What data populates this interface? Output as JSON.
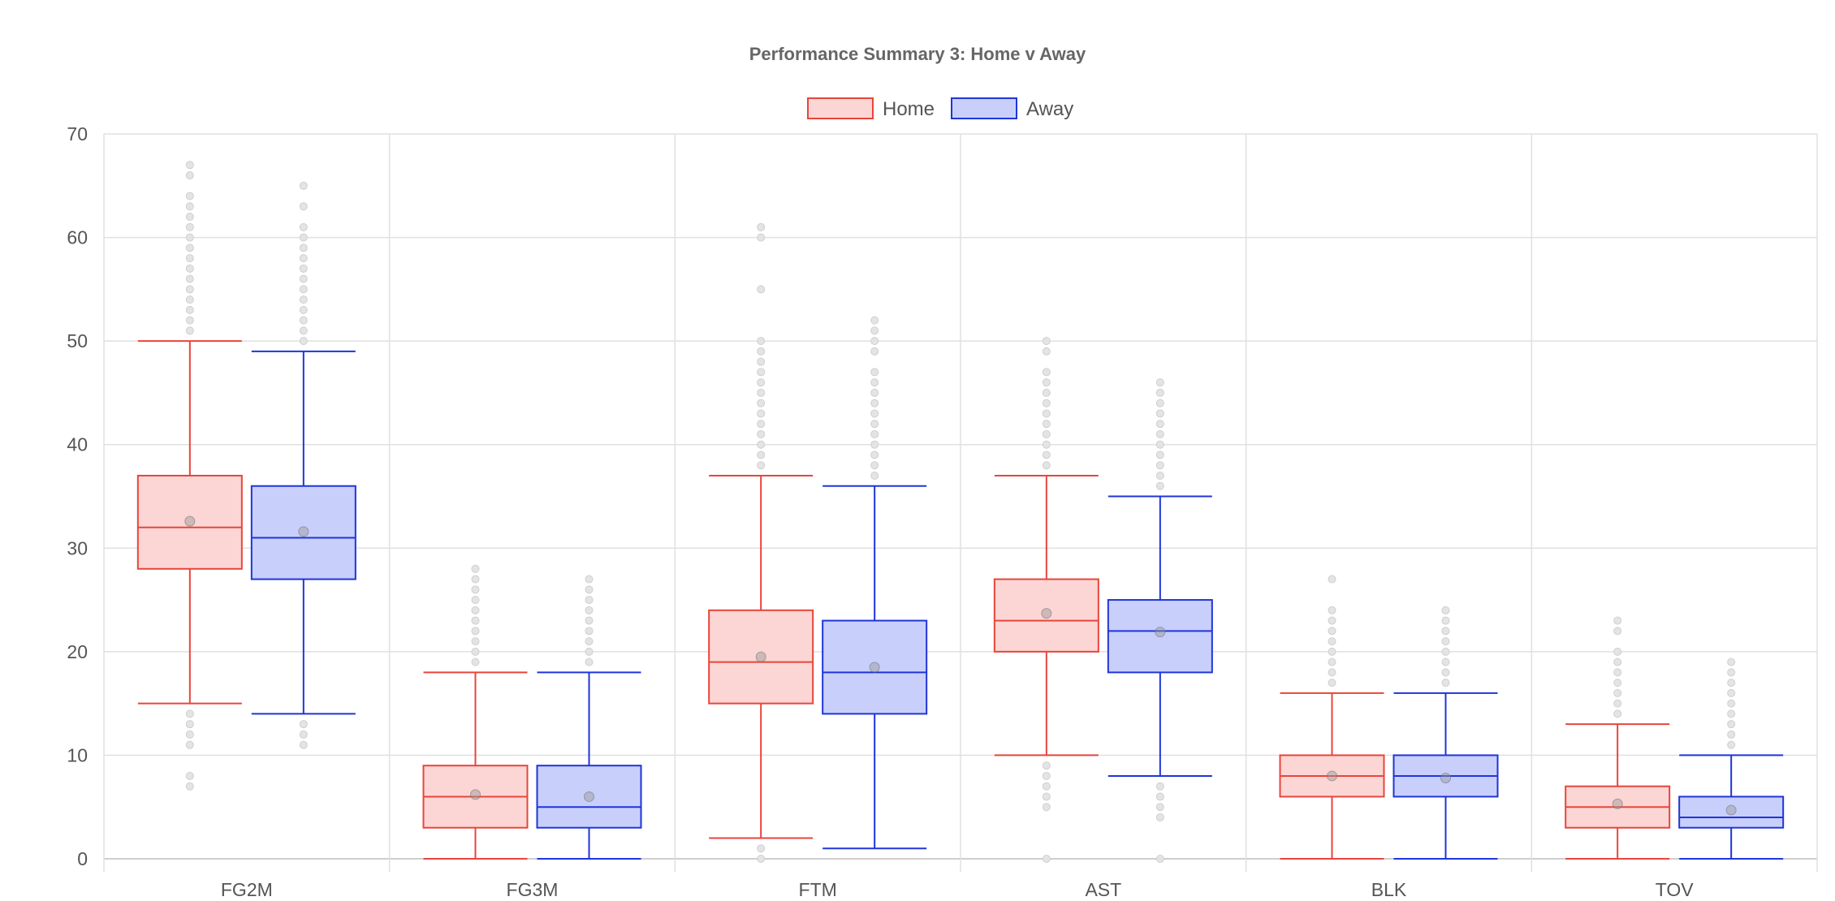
{
  "chart_data": {
    "type": "boxplot",
    "title": "Performance Summary 3: Home v Away",
    "categories": [
      "FG2M",
      "FG3M",
      "FTM",
      "AST",
      "BLK",
      "TOV"
    ],
    "ylim": [
      0,
      70
    ],
    "yticks": [
      0,
      10,
      20,
      30,
      40,
      50,
      60,
      70
    ],
    "grid": true,
    "legend_position": "top-center",
    "series": [
      {
        "name": "Home",
        "stroke": "#e8453c",
        "fill": "#fbd6d4",
        "boxes": [
          {
            "q1": 28,
            "median": 32,
            "q3": 37,
            "whisker_low": 15,
            "whisker_high": 50,
            "mean": 32.6,
            "outliers": [
              7,
              8,
              11,
              12,
              13,
              14,
              51,
              52,
              53,
              54,
              55,
              56,
              57,
              58,
              59,
              60,
              61,
              62,
              63,
              64,
              66,
              67
            ]
          },
          {
            "q1": 3,
            "median": 6,
            "q3": 9,
            "whisker_low": 0,
            "whisker_high": 18,
            "mean": 6.2,
            "outliers": [
              19,
              20,
              21,
              22,
              23,
              24,
              25,
              26,
              27,
              28
            ]
          },
          {
            "q1": 15,
            "median": 19,
            "q3": 24,
            "whisker_low": 2,
            "whisker_high": 37,
            "mean": 19.5,
            "outliers": [
              0,
              1,
              38,
              39,
              40,
              41,
              42,
              43,
              44,
              45,
              46,
              47,
              48,
              49,
              50,
              55,
              60,
              61
            ]
          },
          {
            "q1": 20,
            "median": 23,
            "q3": 27,
            "whisker_low": 10,
            "whisker_high": 37,
            "mean": 23.7,
            "outliers": [
              0,
              5,
              6,
              7,
              8,
              9,
              38,
              39,
              40,
              41,
              42,
              43,
              44,
              45,
              46,
              47,
              49,
              50
            ]
          },
          {
            "q1": 6,
            "median": 8,
            "q3": 10,
            "whisker_low": 0,
            "whisker_high": 16,
            "mean": 8.0,
            "outliers": [
              17,
              18,
              19,
              20,
              21,
              22,
              23,
              24,
              27
            ]
          },
          {
            "q1": 3,
            "median": 5,
            "q3": 7,
            "whisker_low": 0,
            "whisker_high": 13,
            "mean": 5.3,
            "outliers": [
              14,
              15,
              16,
              17,
              18,
              19,
              20,
              22,
              23
            ]
          }
        ]
      },
      {
        "name": "Away",
        "stroke": "#1f35d9",
        "fill": "#c9cffb",
        "boxes": [
          {
            "q1": 27,
            "median": 31,
            "q3": 36,
            "whisker_low": 14,
            "whisker_high": 49,
            "mean": 31.6,
            "outliers": [
              11,
              12,
              13,
              50,
              51,
              52,
              53,
              54,
              55,
              56,
              57,
              58,
              59,
              60,
              61,
              63,
              65
            ]
          },
          {
            "q1": 3,
            "median": 5,
            "q3": 9,
            "whisker_low": 0,
            "whisker_high": 18,
            "mean": 6.0,
            "outliers": [
              19,
              20,
              21,
              22,
              23,
              24,
              25,
              26,
              27
            ]
          },
          {
            "q1": 14,
            "median": 18,
            "q3": 23,
            "whisker_low": 1,
            "whisker_high": 36,
            "mean": 18.5,
            "outliers": [
              37,
              38,
              39,
              40,
              41,
              42,
              43,
              44,
              45,
              46,
              47,
              49,
              50,
              51,
              52
            ]
          },
          {
            "q1": 18,
            "median": 22,
            "q3": 25,
            "whisker_low": 8,
            "whisker_high": 35,
            "mean": 21.9,
            "outliers": [
              0,
              4,
              5,
              6,
              7,
              36,
              37,
              38,
              39,
              40,
              41,
              42,
              43,
              44,
              45,
              46
            ]
          },
          {
            "q1": 6,
            "median": 8,
            "q3": 10,
            "whisker_low": 0,
            "whisker_high": 16,
            "mean": 7.8,
            "outliers": [
              17,
              18,
              19,
              20,
              21,
              22,
              23,
              24
            ]
          },
          {
            "q1": 3,
            "median": 4,
            "q3": 6,
            "whisker_low": 0,
            "whisker_high": 10,
            "mean": 4.7,
            "outliers": [
              11,
              12,
              13,
              14,
              15,
              16,
              17,
              18,
              19
            ]
          }
        ]
      }
    ]
  }
}
